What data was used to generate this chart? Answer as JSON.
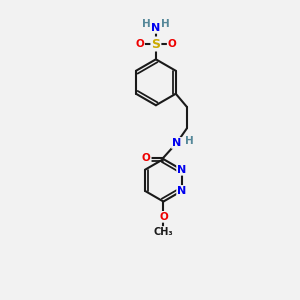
{
  "bg_color": "#f2f2f2",
  "bond_color": "#1a1a1a",
  "bond_width": 1.5,
  "dbo": 0.055,
  "atom_colors": {
    "C": "#1a1a1a",
    "N": "#0000ee",
    "O": "#ee0000",
    "S": "#ccaa00",
    "H": "#558899"
  },
  "font_size": 7.5,
  "figsize": [
    3.0,
    3.0
  ],
  "dpi": 100
}
